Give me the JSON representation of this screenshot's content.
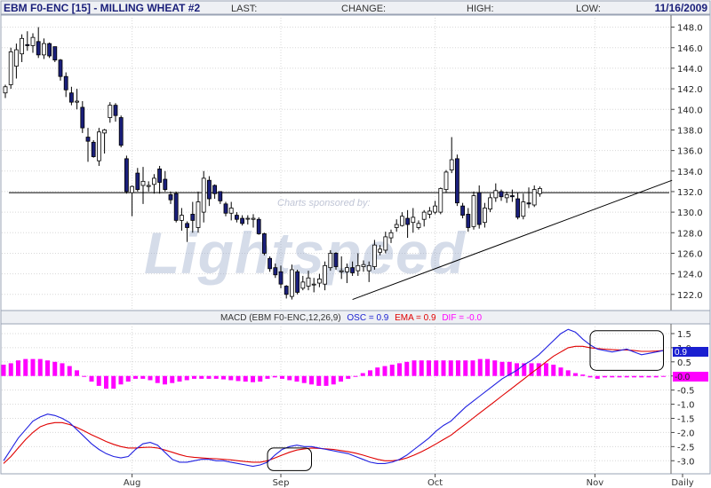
{
  "header": {
    "symbol": "EBM F0-ENC [15] - MILLING WHEAT #2",
    "last_label": "LAST:",
    "change_label": "CHANGE:",
    "high_label": "HIGH:",
    "low_label": "LOW:",
    "date": "11/16/2009"
  },
  "watermark": {
    "sponsor": "Charts sponsored by:",
    "brand": "Lightspeed"
  },
  "macd_legend": {
    "prefix": "MACD (EBM F0-ENC,12,26,9)",
    "osc": "OSC = 0.9",
    "ema": "EMA = 0.9",
    "dif": "DIF = -0.0"
  },
  "colors": {
    "up_fill": "#ffffff",
    "down_fill": "#1a1f7a",
    "candle_outline": "#000000",
    "histogram": "#ff00ff",
    "macd_line": "#2020e0",
    "signal_line": "#e00000",
    "badge_osc_bg": "#1a1fd0",
    "badge_dif_bg": "#ff00ff",
    "grid": "#d8d8d8"
  },
  "chart_data": [
    {
      "type": "candlestick",
      "title": "EBM F0-ENC [15] - MILLING WHEAT #2",
      "ylim": [
        120.6,
        149.0
      ],
      "yticks": [
        "148.0",
        "146.0",
        "144.0",
        "142.0",
        "140.0",
        "138.0",
        "136.0",
        "134.0",
        "132.0",
        "130.0",
        "128.0",
        "126.0",
        "124.0",
        "122.0"
      ],
      "x_labels": [
        {
          "label": "Aug",
          "index": 23
        },
        {
          "label": "Sep",
          "index": 50
        },
        {
          "label": "Oct",
          "index": 78
        },
        {
          "label": "Nov",
          "index": 107
        },
        {
          "label": "Daily",
          "index": 124
        }
      ],
      "annotations": [
        {
          "kind": "horizontal_line",
          "value": 131.9
        },
        {
          "kind": "trendline",
          "from": {
            "index": 63,
            "value": 121.5
          },
          "to": {
            "index": 121,
            "value": 133.1
          }
        }
      ],
      "ohlc": [
        {
          "o": 141.6,
          "h": 142.4,
          "l": 141.1,
          "c": 142.2
        },
        {
          "o": 142.4,
          "h": 146.0,
          "l": 142.0,
          "c": 145.6
        },
        {
          "o": 144.2,
          "h": 146.4,
          "l": 143.0,
          "c": 145.8
        },
        {
          "o": 145.4,
          "h": 147.3,
          "l": 144.6,
          "c": 146.9
        },
        {
          "o": 146.3,
          "h": 147.6,
          "l": 145.7,
          "c": 146.2
        },
        {
          "o": 146.2,
          "h": 147.4,
          "l": 145.5,
          "c": 147.0
        },
        {
          "o": 146.6,
          "h": 148.0,
          "l": 145.0,
          "c": 145.3
        },
        {
          "o": 145.3,
          "h": 146.9,
          "l": 144.9,
          "c": 146.4
        },
        {
          "o": 146.4,
          "h": 146.5,
          "l": 145.0,
          "c": 145.2
        },
        {
          "o": 146.1,
          "h": 146.1,
          "l": 144.6,
          "c": 144.8
        },
        {
          "o": 144.8,
          "h": 144.9,
          "l": 142.8,
          "c": 143.2
        },
        {
          "o": 143.2,
          "h": 143.6,
          "l": 141.2,
          "c": 141.9
        },
        {
          "o": 141.6,
          "h": 142.2,
          "l": 140.4,
          "c": 140.7
        },
        {
          "o": 140.7,
          "h": 142.0,
          "l": 140.0,
          "c": 140.8
        },
        {
          "o": 140.2,
          "h": 140.8,
          "l": 137.7,
          "c": 138.2
        },
        {
          "o": 137.3,
          "h": 138.2,
          "l": 134.9,
          "c": 136.9
        },
        {
          "o": 136.8,
          "h": 137.0,
          "l": 135.3,
          "c": 135.4
        },
        {
          "o": 135.0,
          "h": 138.2,
          "l": 134.5,
          "c": 137.8
        },
        {
          "o": 137.7,
          "h": 138.1,
          "l": 135.7,
          "c": 138.0
        },
        {
          "o": 139.2,
          "h": 140.7,
          "l": 138.7,
          "c": 140.4
        },
        {
          "o": 140.4,
          "h": 140.6,
          "l": 138.8,
          "c": 139.4
        },
        {
          "o": 139.2,
          "h": 139.4,
          "l": 136.3,
          "c": 136.5
        },
        {
          "o": 135.2,
          "h": 135.5,
          "l": 131.8,
          "c": 132.0
        },
        {
          "o": 131.9,
          "h": 132.6,
          "l": 129.6,
          "c": 132.5
        },
        {
          "o": 133.8,
          "h": 134.3,
          "l": 132.0,
          "c": 132.2
        },
        {
          "o": 132.6,
          "h": 134.4,
          "l": 130.8,
          "c": 133.0
        },
        {
          "o": 132.5,
          "h": 133.0,
          "l": 132.0,
          "c": 132.6
        },
        {
          "o": 132.7,
          "h": 133.7,
          "l": 131.8,
          "c": 133.3
        },
        {
          "o": 134.2,
          "h": 134.5,
          "l": 131.8,
          "c": 132.9
        },
        {
          "o": 133.2,
          "h": 134.0,
          "l": 132.0,
          "c": 132.2
        },
        {
          "o": 131.7,
          "h": 132.0,
          "l": 130.8,
          "c": 131.2
        },
        {
          "o": 131.8,
          "h": 132.0,
          "l": 129.0,
          "c": 129.2
        },
        {
          "o": 129.2,
          "h": 130.4,
          "l": 128.2,
          "c": 129.7
        },
        {
          "o": 128.9,
          "h": 129.1,
          "l": 127.1,
          "c": 128.5
        },
        {
          "o": 129.8,
          "h": 131.0,
          "l": 128.0,
          "c": 129.2
        },
        {
          "o": 128.5,
          "h": 132.0,
          "l": 128.0,
          "c": 131.0
        },
        {
          "o": 130.0,
          "h": 134.0,
          "l": 129.0,
          "c": 133.3
        },
        {
          "o": 133.1,
          "h": 133.5,
          "l": 130.6,
          "c": 131.3
        },
        {
          "o": 132.6,
          "h": 132.7,
          "l": 131.3,
          "c": 131.8
        },
        {
          "o": 132.0,
          "h": 132.0,
          "l": 130.8,
          "c": 131.1
        },
        {
          "o": 130.8,
          "h": 131.0,
          "l": 129.6,
          "c": 129.9
        },
        {
          "o": 129.9,
          "h": 131.0,
          "l": 129.2,
          "c": 130.4
        },
        {
          "o": 129.7,
          "h": 130.0,
          "l": 129.0,
          "c": 129.3
        },
        {
          "o": 129.4,
          "h": 129.7,
          "l": 128.7,
          "c": 128.9
        },
        {
          "o": 129.4,
          "h": 129.7,
          "l": 128.8,
          "c": 129.4
        },
        {
          "o": 129.3,
          "h": 129.8,
          "l": 128.5,
          "c": 129.4
        },
        {
          "o": 129.3,
          "h": 129.5,
          "l": 127.8,
          "c": 127.9
        },
        {
          "o": 127.9,
          "h": 128.0,
          "l": 125.8,
          "c": 126.0
        },
        {
          "o": 125.5,
          "h": 125.7,
          "l": 124.2,
          "c": 124.5
        },
        {
          "o": 124.6,
          "h": 125.0,
          "l": 123.6,
          "c": 123.9
        },
        {
          "o": 124.2,
          "h": 124.8,
          "l": 122.6,
          "c": 123.0
        },
        {
          "o": 122.8,
          "h": 122.9,
          "l": 121.6,
          "c": 122.0
        },
        {
          "o": 121.8,
          "h": 124.9,
          "l": 121.5,
          "c": 124.4
        },
        {
          "o": 124.2,
          "h": 124.4,
          "l": 122.0,
          "c": 122.2
        },
        {
          "o": 122.6,
          "h": 123.8,
          "l": 122.4,
          "c": 123.2
        },
        {
          "o": 122.8,
          "h": 124.3,
          "l": 122.4,
          "c": 123.6
        },
        {
          "o": 123.0,
          "h": 123.6,
          "l": 122.2,
          "c": 123.0
        },
        {
          "o": 123.1,
          "h": 124.0,
          "l": 122.7,
          "c": 123.5
        },
        {
          "o": 123.0,
          "h": 125.2,
          "l": 122.4,
          "c": 124.8
        },
        {
          "o": 124.6,
          "h": 126.3,
          "l": 124.3,
          "c": 126.0
        },
        {
          "o": 126.0,
          "h": 126.1,
          "l": 124.4,
          "c": 124.7
        },
        {
          "o": 124.2,
          "h": 125.7,
          "l": 123.5,
          "c": 124.3
        },
        {
          "o": 124.2,
          "h": 125.0,
          "l": 123.1,
          "c": 124.6
        },
        {
          "o": 124.6,
          "h": 125.2,
          "l": 123.8,
          "c": 124.1
        },
        {
          "o": 124.3,
          "h": 126.0,
          "l": 123.8,
          "c": 124.8
        },
        {
          "o": 124.7,
          "h": 125.3,
          "l": 124.2,
          "c": 124.9
        },
        {
          "o": 124.3,
          "h": 125.2,
          "l": 123.2,
          "c": 124.8
        },
        {
          "o": 124.7,
          "h": 127.3,
          "l": 124.4,
          "c": 126.8
        },
        {
          "o": 126.1,
          "h": 126.8,
          "l": 125.8,
          "c": 126.4
        },
        {
          "o": 126.3,
          "h": 128.1,
          "l": 126.0,
          "c": 127.6
        },
        {
          "o": 127.5,
          "h": 128.3,
          "l": 127.0,
          "c": 128.0
        },
        {
          "o": 128.5,
          "h": 129.3,
          "l": 128.1,
          "c": 128.8
        },
        {
          "o": 128.7,
          "h": 130.0,
          "l": 128.6,
          "c": 129.6
        },
        {
          "o": 129.4,
          "h": 130.2,
          "l": 127.5,
          "c": 128.8
        },
        {
          "o": 129.0,
          "h": 130.4,
          "l": 128.0,
          "c": 129.5
        },
        {
          "o": 128.5,
          "h": 129.2,
          "l": 128.3,
          "c": 128.9
        },
        {
          "o": 129.3,
          "h": 130.2,
          "l": 128.6,
          "c": 130.0
        },
        {
          "o": 129.8,
          "h": 130.5,
          "l": 129.4,
          "c": 130.1
        },
        {
          "o": 130.0,
          "h": 131.1,
          "l": 129.8,
          "c": 130.6
        },
        {
          "o": 130.0,
          "h": 132.4,
          "l": 129.8,
          "c": 132.3
        },
        {
          "o": 132.2,
          "h": 134.1,
          "l": 131.9,
          "c": 133.9
        },
        {
          "o": 134.1,
          "h": 137.3,
          "l": 133.8,
          "c": 135.1
        },
        {
          "o": 135.2,
          "h": 135.6,
          "l": 130.6,
          "c": 130.9
        },
        {
          "o": 130.6,
          "h": 130.9,
          "l": 129.4,
          "c": 129.7
        },
        {
          "o": 129.8,
          "h": 130.4,
          "l": 128.1,
          "c": 128.5
        },
        {
          "o": 128.6,
          "h": 132.0,
          "l": 128.3,
          "c": 131.6
        },
        {
          "o": 131.9,
          "h": 132.6,
          "l": 128.4,
          "c": 128.8
        },
        {
          "o": 129.0,
          "h": 130.9,
          "l": 128.5,
          "c": 130.4
        },
        {
          "o": 130.3,
          "h": 131.8,
          "l": 130.0,
          "c": 131.4
        },
        {
          "o": 131.4,
          "h": 132.8,
          "l": 131.0,
          "c": 132.1
        },
        {
          "o": 132.0,
          "h": 132.2,
          "l": 131.1,
          "c": 131.5
        },
        {
          "o": 131.4,
          "h": 132.0,
          "l": 130.9,
          "c": 131.7
        },
        {
          "o": 131.6,
          "h": 132.2,
          "l": 131.0,
          "c": 131.5
        },
        {
          "o": 131.3,
          "h": 131.9,
          "l": 129.3,
          "c": 129.5
        },
        {
          "o": 129.6,
          "h": 131.8,
          "l": 129.3,
          "c": 131.0
        },
        {
          "o": 130.9,
          "h": 132.4,
          "l": 130.4,
          "c": 130.8
        },
        {
          "o": 130.7,
          "h": 132.6,
          "l": 130.5,
          "c": 132.2
        },
        {
          "o": 131.8,
          "h": 132.5,
          "l": 131.5,
          "c": 132.3
        }
      ]
    },
    {
      "type": "line",
      "title": "MACD (EBM F0-ENC,12,26,9)",
      "ylim": [
        -3.4,
        1.75
      ],
      "yticks": [
        "1.5",
        "1.0",
        "0.5",
        "0.0",
        "-0.5",
        "-1.0",
        "-1.5",
        "-2.0",
        "-2.5",
        "-3.0"
      ],
      "series": [
        {
          "name": "OSC",
          "last": "0.9",
          "values": [
            -3.0,
            -2.6,
            -2.2,
            -1.9,
            -1.6,
            -1.45,
            -1.35,
            -1.4,
            -1.5,
            -1.65,
            -1.9,
            -2.15,
            -2.4,
            -2.6,
            -2.75,
            -2.85,
            -2.9,
            -2.85,
            -2.6,
            -2.4,
            -2.35,
            -2.45,
            -2.7,
            -2.95,
            -3.05,
            -3.05,
            -3.0,
            -2.95,
            -2.95,
            -3.0,
            -3.0,
            -3.05,
            -3.1,
            -3.15,
            -3.2,
            -3.15,
            -3.05,
            -2.8,
            -2.6,
            -2.5,
            -2.45,
            -2.5,
            -2.5,
            -2.55,
            -2.6,
            -2.65,
            -2.7,
            -2.75,
            -2.85,
            -2.95,
            -3.05,
            -3.1,
            -3.1,
            -3.05,
            -2.95,
            -2.8,
            -2.6,
            -2.4,
            -2.2,
            -1.95,
            -1.75,
            -1.6,
            -1.35,
            -1.1,
            -0.9,
            -0.7,
            -0.5,
            -0.3,
            -0.1,
            0.05,
            0.2,
            0.4,
            0.55,
            0.75,
            1.0,
            1.25,
            1.5,
            1.65,
            1.55,
            1.3,
            1.1,
            0.95,
            0.9,
            0.85,
            0.9,
            0.95,
            0.85,
            0.75,
            0.8,
            0.85,
            0.9
          ]
        },
        {
          "name": "EMA",
          "last": "0.9",
          "values": [
            -3.1,
            -2.85,
            -2.55,
            -2.25,
            -2.0,
            -1.8,
            -1.7,
            -1.65,
            -1.65,
            -1.72,
            -1.82,
            -1.95,
            -2.08,
            -2.2,
            -2.32,
            -2.42,
            -2.5,
            -2.55,
            -2.55,
            -2.53,
            -2.52,
            -2.55,
            -2.62,
            -2.7,
            -2.78,
            -2.85,
            -2.88,
            -2.9,
            -2.92,
            -2.93,
            -2.95,
            -2.97,
            -3.0,
            -3.03,
            -3.05,
            -3.05,
            -3.0,
            -2.9,
            -2.8,
            -2.7,
            -2.62,
            -2.58,
            -2.55,
            -2.56,
            -2.58,
            -2.6,
            -2.64,
            -2.68,
            -2.73,
            -2.8,
            -2.88,
            -2.95,
            -3.0,
            -3.0,
            -2.97,
            -2.9,
            -2.8,
            -2.68,
            -2.55,
            -2.4,
            -2.25,
            -2.1,
            -1.9,
            -1.7,
            -1.5,
            -1.3,
            -1.1,
            -0.9,
            -0.7,
            -0.5,
            -0.3,
            -0.1,
            0.1,
            0.3,
            0.5,
            0.7,
            0.85,
            1.0,
            1.05,
            1.05,
            1.0,
            0.97,
            0.95,
            0.93,
            0.92,
            0.92,
            0.9,
            0.87,
            0.87,
            0.88,
            0.9
          ]
        },
        {
          "name": "DIF",
          "last": "-0.0",
          "values": [
            0.4,
            0.45,
            0.55,
            0.6,
            0.6,
            0.6,
            0.55,
            0.5,
            0.45,
            0.35,
            0.2,
            0.0,
            -0.2,
            -0.35,
            -0.45,
            -0.45,
            -0.3,
            -0.2,
            -0.1,
            -0.1,
            -0.15,
            -0.25,
            -0.3,
            -0.25,
            -0.2,
            -0.15,
            -0.1,
            -0.1,
            -0.1,
            -0.1,
            -0.12,
            -0.15,
            -0.18,
            -0.2,
            -0.22,
            -0.2,
            -0.1,
            -0.05,
            -0.1,
            -0.15,
            -0.2,
            -0.25,
            -0.3,
            -0.35,
            -0.35,
            -0.3,
            -0.2,
            -0.1,
            0.0,
            0.1,
            0.2,
            0.3,
            0.35,
            0.4,
            0.45,
            0.5,
            0.55,
            0.55,
            0.55,
            0.55,
            0.55,
            0.55,
            0.55,
            0.55,
            0.55,
            0.6,
            0.6,
            0.55,
            0.5,
            0.5,
            0.45,
            0.45,
            0.45,
            0.45,
            0.45,
            0.4,
            0.3,
            0.2,
            0.1,
            0.05,
            -0.05,
            -0.1,
            -0.05,
            -0.05,
            -0.05,
            -0.05,
            -0.05,
            -0.05,
            -0.05,
            -0.05,
            -0.0
          ]
        }
      ],
      "annotations": [
        {
          "kind": "box",
          "from_index": 36,
          "to_index": 42
        },
        {
          "kind": "box",
          "from_index": 80,
          "to_index": 90
        }
      ]
    }
  ]
}
